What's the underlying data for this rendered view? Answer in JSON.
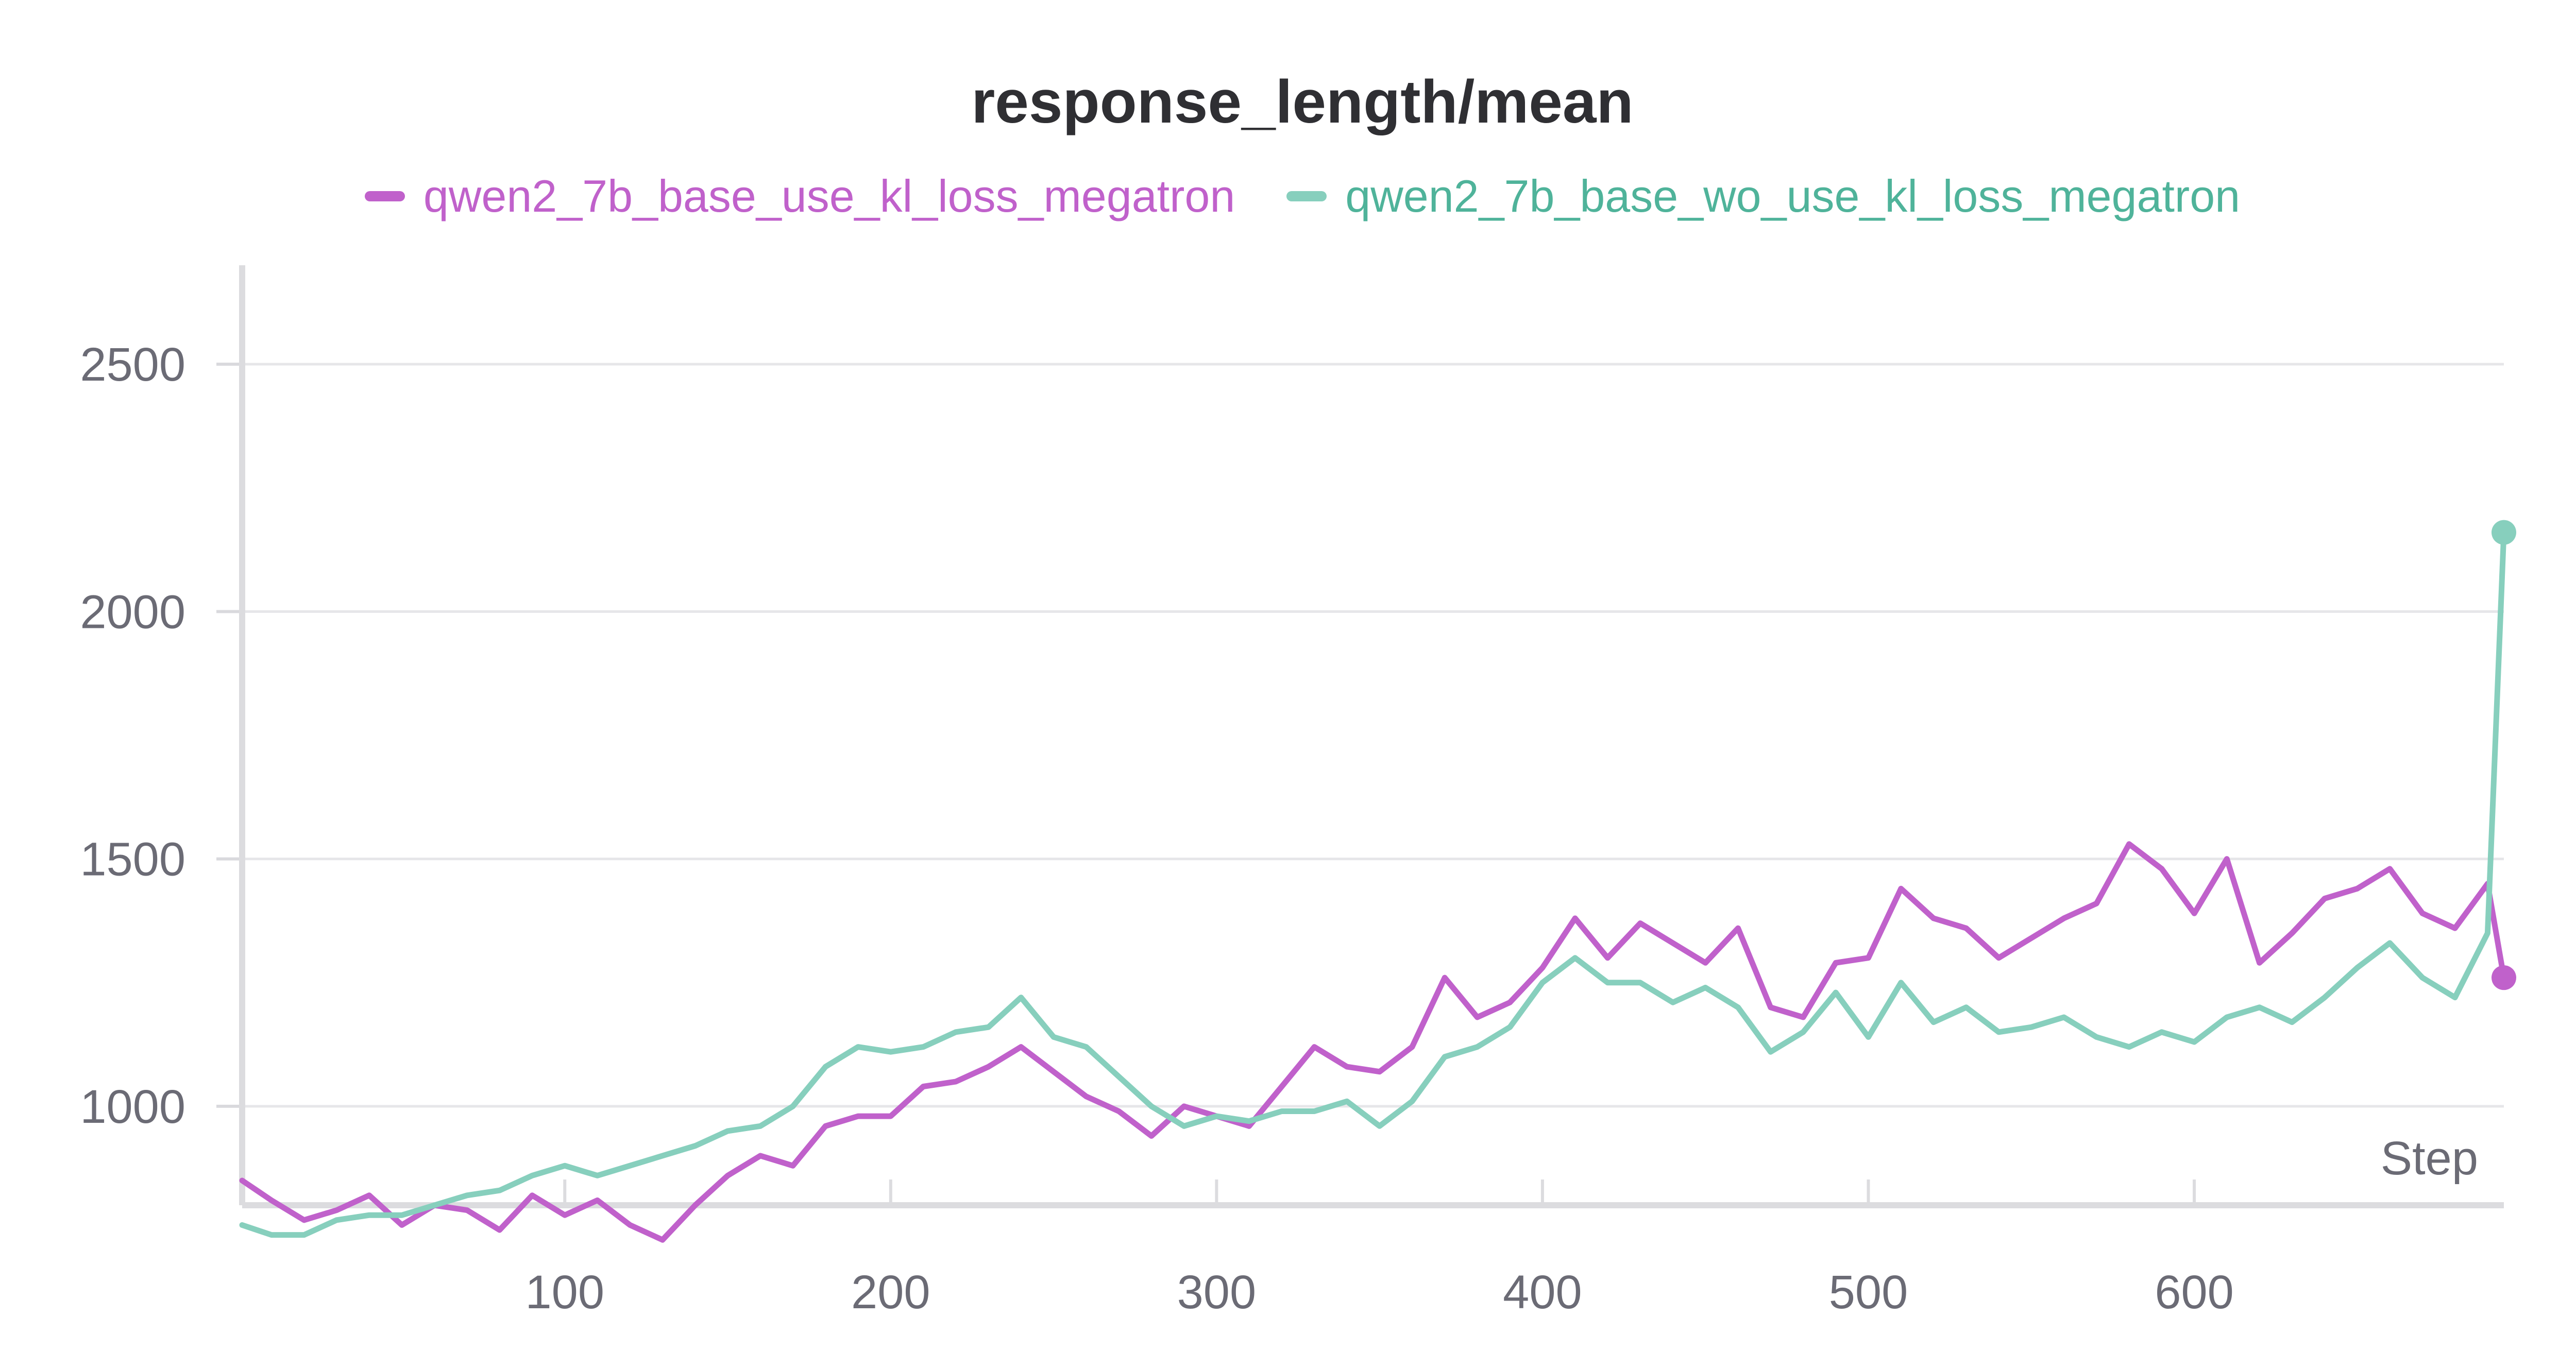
{
  "chart_data": {
    "type": "line",
    "title": "response_length/mean",
    "xlabel": "Step",
    "ylabel": "",
    "xlim": [
      1,
      695
    ],
    "ylim": [
      800,
      2700
    ],
    "x_ticks": [
      100,
      200,
      300,
      400,
      500,
      600
    ],
    "y_ticks": [
      1000,
      1500,
      2000,
      2500
    ],
    "grid": "horizontal",
    "legend_position": "top-center",
    "series": [
      {
        "name": "qwen2_7b_base_use_kl_loss_megatron",
        "color": "#c061cb",
        "x": [
          1,
          10,
          20,
          30,
          40,
          50,
          60,
          70,
          80,
          90,
          100,
          110,
          120,
          130,
          140,
          150,
          160,
          170,
          180,
          190,
          200,
          210,
          220,
          230,
          240,
          250,
          260,
          270,
          280,
          290,
          300,
          310,
          320,
          330,
          340,
          350,
          360,
          370,
          380,
          390,
          400,
          410,
          420,
          430,
          440,
          450,
          460,
          470,
          480,
          490,
          500,
          510,
          520,
          530,
          540,
          550,
          560,
          570,
          580,
          590,
          600,
          610,
          620,
          630,
          640,
          650,
          660,
          670,
          680,
          690,
          695
        ],
        "y": [
          850,
          810,
          770,
          790,
          820,
          760,
          800,
          790,
          750,
          820,
          780,
          810,
          760,
          730,
          800,
          860,
          900,
          880,
          960,
          980,
          980,
          1040,
          1050,
          1080,
          1120,
          1070,
          1020,
          990,
          940,
          1000,
          980,
          960,
          1040,
          1120,
          1080,
          1070,
          1120,
          1260,
          1180,
          1210,
          1280,
          1380,
          1300,
          1370,
          1330,
          1290,
          1360,
          1200,
          1180,
          1290,
          1300,
          1440,
          1380,
          1360,
          1300,
          1340,
          1380,
          1410,
          1530,
          1480,
          1390,
          1500,
          1290,
          1350,
          1420,
          1440,
          1480,
          1390,
          1360,
          1450,
          1260
        ]
      },
      {
        "name": "qwen2_7b_base_wo_use_kl_loss_megatron",
        "color": "#87cfbd",
        "x": [
          1,
          10,
          20,
          30,
          40,
          50,
          60,
          70,
          80,
          90,
          100,
          110,
          120,
          130,
          140,
          150,
          160,
          170,
          180,
          190,
          200,
          210,
          220,
          230,
          240,
          250,
          260,
          270,
          280,
          290,
          300,
          310,
          320,
          330,
          340,
          350,
          360,
          370,
          380,
          390,
          400,
          410,
          420,
          430,
          440,
          450,
          460,
          470,
          480,
          490,
          500,
          510,
          520,
          530,
          540,
          550,
          560,
          570,
          580,
          590,
          600,
          610,
          620,
          630,
          640,
          650,
          660,
          670,
          680,
          690,
          695
        ],
        "y": [
          760,
          740,
          740,
          770,
          780,
          780,
          800,
          820,
          830,
          860,
          880,
          860,
          880,
          900,
          920,
          950,
          960,
          1000,
          1080,
          1120,
          1110,
          1120,
          1150,
          1160,
          1220,
          1140,
          1120,
          1060,
          1000,
          960,
          980,
          970,
          990,
          990,
          1010,
          960,
          1010,
          1100,
          1120,
          1160,
          1250,
          1300,
          1250,
          1250,
          1210,
          1240,
          1200,
          1110,
          1150,
          1230,
          1140,
          1250,
          1170,
          1200,
          1150,
          1160,
          1180,
          1140,
          1120,
          1150,
          1130,
          1180,
          1200,
          1170,
          1220,
          1280,
          1330,
          1260,
          1220,
          1350,
          2160
        ]
      }
    ]
  }
}
